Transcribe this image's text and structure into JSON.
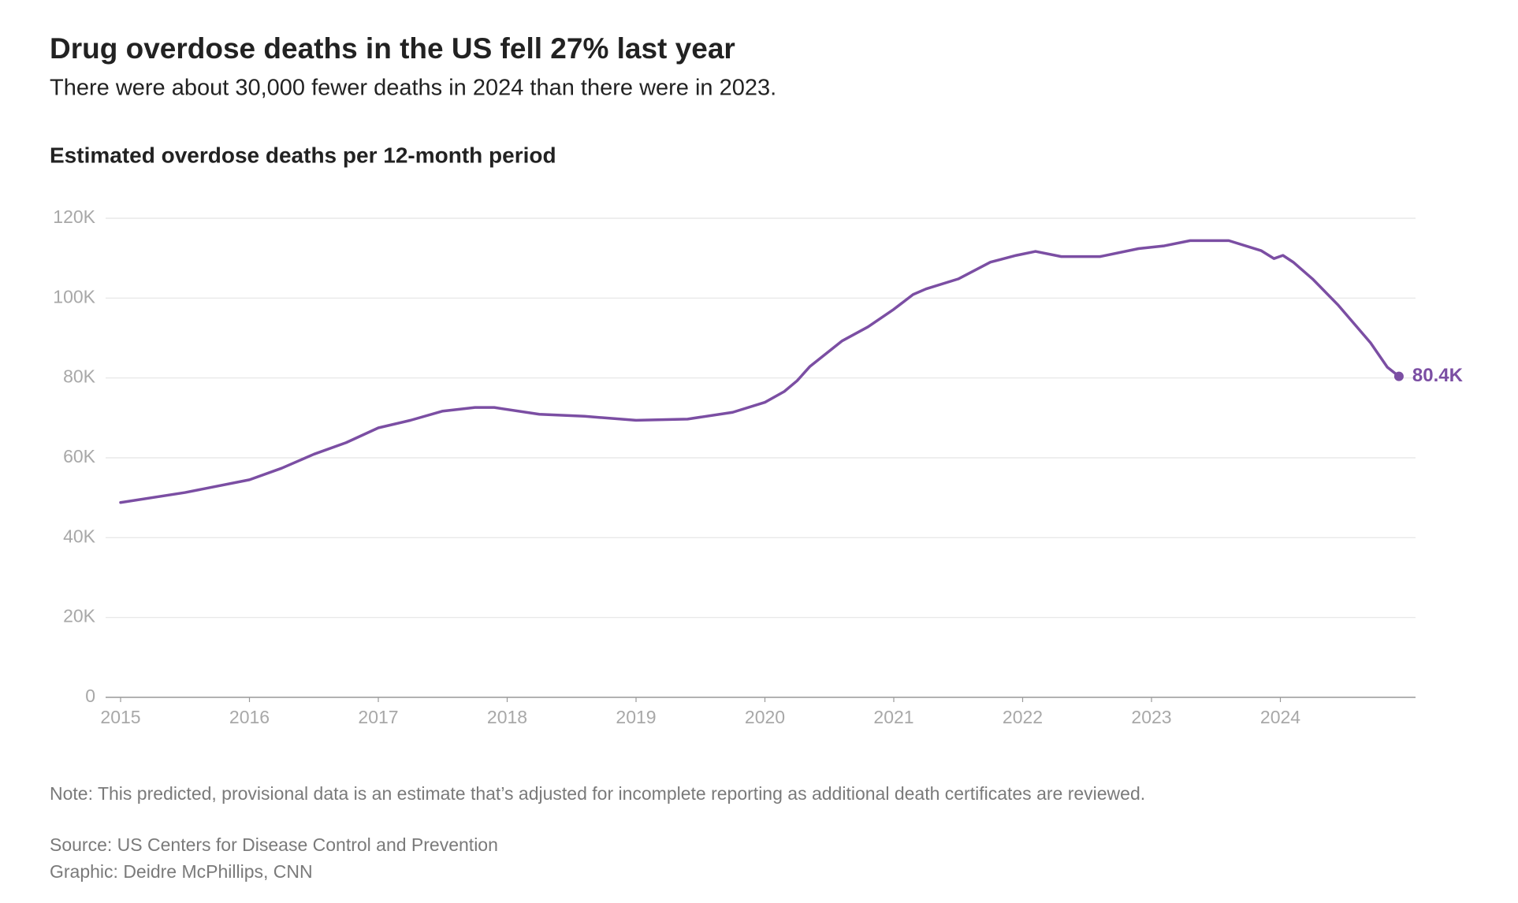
{
  "chart_data": {
    "type": "line",
    "title": "Drug overdose deaths in the US fell 27% last year",
    "subtitle": "There were about 30,000 fewer deaths in 2024 than there were in 2023.",
    "y_axis_title": "Estimated overdose deaths per 12-month period",
    "note": "Note: This predicted, provisional data is an estimate that’s adjusted for incomplete reporting as additional death certificates are reviewed.",
    "source": "Source: US Centers for Disease Control and Prevention",
    "credit": "Graphic: Deidre McPhillips, CNN",
    "x": [
      2015,
      2015.5,
      2016,
      2016.25,
      2016.5,
      2016.75,
      2017,
      2017.25,
      2017.5,
      2017.75,
      2017.9,
      2018.25,
      2018.6,
      2019,
      2019.4,
      2019.75,
      2020,
      2020.15,
      2020.25,
      2020.35,
      2020.6,
      2020.8,
      2021,
      2021.15,
      2021.25,
      2021.5,
      2021.75,
      2021.95,
      2022.1,
      2022.3,
      2022.6,
      2022.9,
      2023.1,
      2023.3,
      2023.6,
      2023.85,
      2023.95,
      2024.02,
      2024.1,
      2024.25,
      2024.45,
      2024.7,
      2024.83,
      2024.92
    ],
    "series": [
      {
        "name": "Estimated overdose deaths",
        "color": "#7b4ea3",
        "values": [
          48800,
          51300,
          54500,
          57400,
          60900,
          63800,
          67500,
          69400,
          71700,
          72600,
          72600,
          70900,
          70400,
          69400,
          69700,
          71400,
          73900,
          76600,
          79300,
          82900,
          89300,
          92800,
          97200,
          100900,
          102300,
          104800,
          109000,
          110700,
          111700,
          110400,
          110400,
          112400,
          113100,
          114400,
          114400,
          111900,
          109900,
          110700,
          109000,
          104800,
          98200,
          88800,
          82700,
          80400
        ]
      }
    ],
    "end_label": "80.4K",
    "xlim": [
      2015,
      2025
    ],
    "xticks": [
      2015,
      2016,
      2017,
      2018,
      2019,
      2020,
      2021,
      2022,
      2023,
      2024
    ],
    "ylim": [
      0,
      120000
    ],
    "yticks": [
      {
        "value": 0,
        "label": "0"
      },
      {
        "value": 20000,
        "label": "20K"
      },
      {
        "value": 40000,
        "label": "40K"
      },
      {
        "value": 60000,
        "label": "60K"
      },
      {
        "value": 80000,
        "label": "80K"
      },
      {
        "value": 100000,
        "label": "100K"
      },
      {
        "value": 120000,
        "label": "120K"
      }
    ],
    "grid": true
  }
}
